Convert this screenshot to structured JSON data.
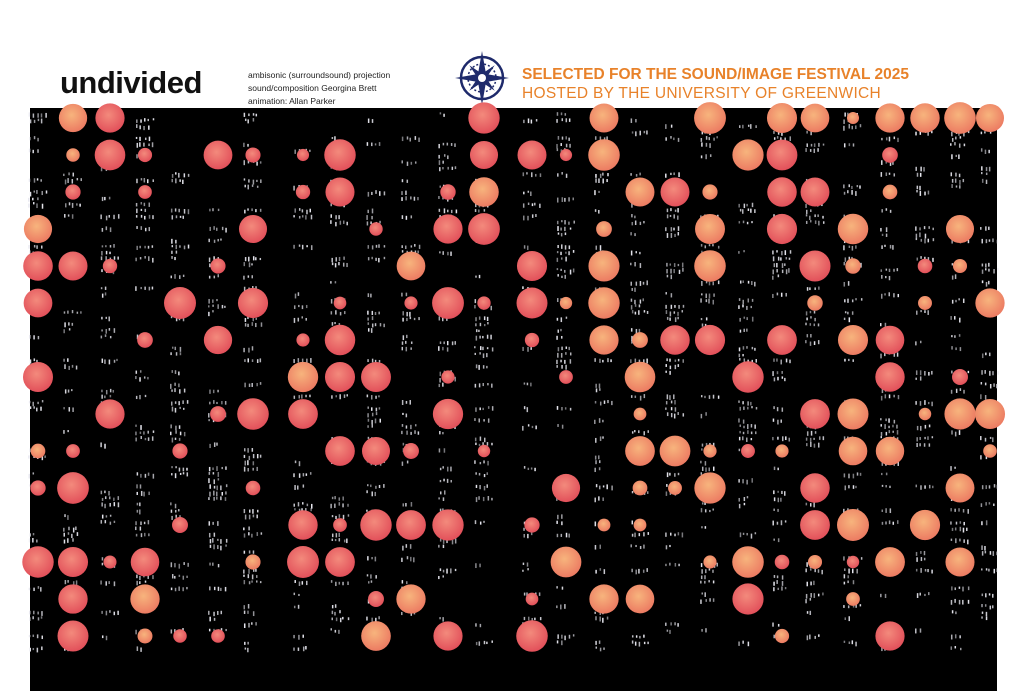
{
  "header": {
    "title": "undivided",
    "credits": [
      "ambisonic (surroundsound) projection",
      "sound/composition Georgina Brett",
      "animation: Allan Parker"
    ],
    "festival": "SELECTED FOR THE SOUND/IMAGE FESTIVAL 2025",
    "host": "HOSTED BY THE UNIVERSITY OF GREENWICH"
  }
}
